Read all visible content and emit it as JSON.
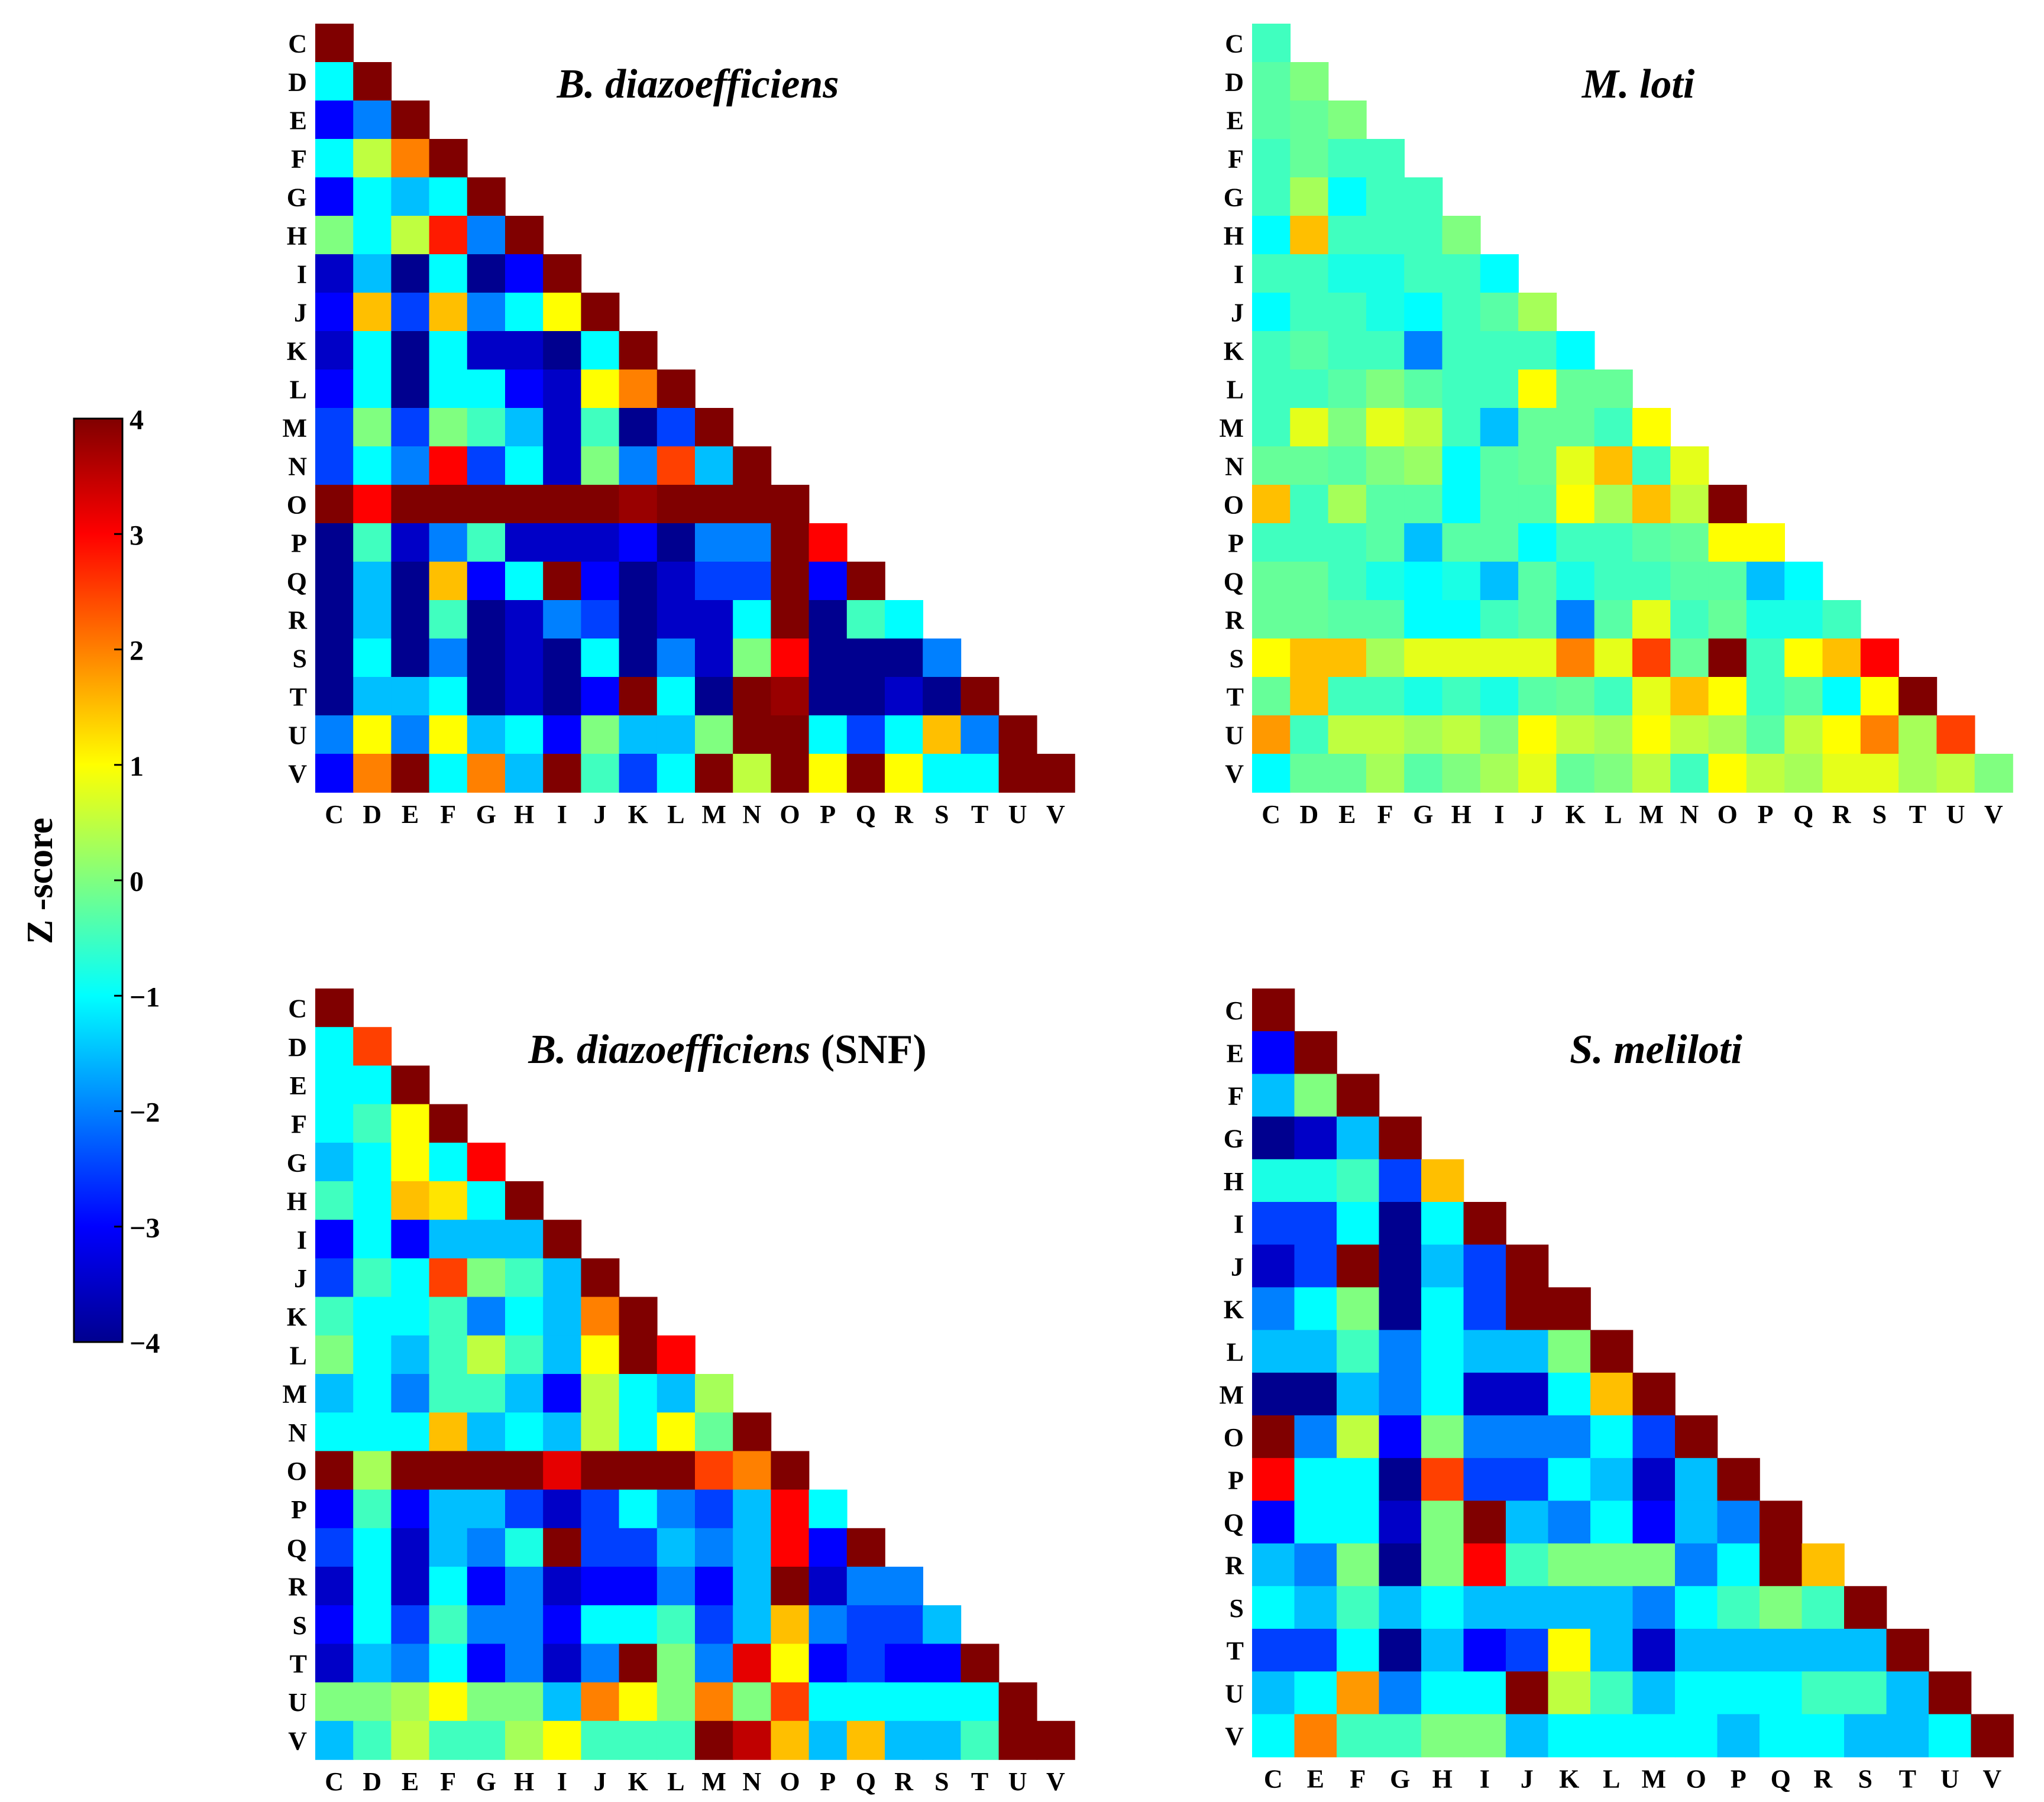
{
  "colorbar": {
    "label": "Z -score",
    "ticks": [
      "4",
      "3",
      "2",
      "1",
      "0",
      "−1",
      "−2",
      "−3",
      "−4"
    ],
    "min": -4,
    "max": 4,
    "colormap": "jet"
  },
  "chart_data": [
    {
      "type": "heatmap",
      "title": "B. diazoefficiens",
      "title_suffix": "",
      "labels": [
        "C",
        "D",
        "E",
        "F",
        "G",
        "H",
        "I",
        "J",
        "K",
        "L",
        "M",
        "N",
        "O",
        "P",
        "Q",
        "R",
        "S",
        "T",
        "U",
        "V"
      ],
      "matrix": [
        [
          4.0
        ],
        [
          -1.0,
          4.0
        ],
        [
          -3.0,
          -2.0,
          4.0
        ],
        [
          -1.0,
          0.5,
          2.0,
          4.0
        ],
        [
          -3.0,
          -1.0,
          -1.5,
          -1.0,
          4.0
        ],
        [
          0.0,
          -1.0,
          0.5,
          2.8,
          -2.0,
          4.0
        ],
        [
          -3.5,
          -1.5,
          -4.0,
          -1.0,
          -4.0,
          -3.0,
          4.0
        ],
        [
          -3.0,
          1.5,
          -2.5,
          1.5,
          -2.0,
          -1.0,
          1.0,
          4.0
        ],
        [
          -3.5,
          -1.0,
          -4.0,
          -1.0,
          -3.5,
          -3.5,
          -4.0,
          -1.0,
          4.0
        ],
        [
          -3.0,
          -1.0,
          -4.0,
          -1.0,
          -1.0,
          -3.0,
          -3.5,
          1.0,
          2.0,
          4.0
        ],
        [
          -2.5,
          0.0,
          -2.5,
          0.0,
          -0.5,
          -1.5,
          -3.5,
          -0.5,
          -4.0,
          -2.5,
          4.0
        ],
        [
          -2.5,
          -1.0,
          -2.0,
          3.0,
          -2.5,
          -1.0,
          -3.5,
          0.0,
          -2.0,
          2.5,
          -1.5,
          4.0
        ],
        [
          4.0,
          3.0,
          4.0,
          4.0,
          4.0,
          4.0,
          4.0,
          4.0,
          3.8,
          4.0,
          4.0,
          4.0,
          4.0
        ],
        [
          -4.0,
          -0.5,
          -3.5,
          -2.0,
          -0.5,
          -3.5,
          -3.5,
          -3.5,
          -3.0,
          -4.0,
          -2.0,
          -2.0,
          4.0,
          3.0
        ],
        [
          -4.0,
          -1.5,
          -4.0,
          1.5,
          -3.0,
          -1.0,
          4.0,
          -3.0,
          -4.0,
          -3.5,
          -2.5,
          -2.5,
          4.0,
          -3.0,
          4.0
        ],
        [
          -4.0,
          -1.5,
          -4.0,
          -0.5,
          -4.0,
          -3.5,
          -2.0,
          -2.5,
          -4.0,
          -3.5,
          -3.5,
          -1.0,
          4.0,
          -4.0,
          -0.5,
          -1.0
        ],
        [
          -4.0,
          -1.0,
          -4.0,
          -2.0,
          -4.0,
          -3.5,
          -4.0,
          -1.0,
          -4.0,
          -2.0,
          -3.5,
          0.0,
          3.0,
          -4.0,
          -4.0,
          -4.0,
          -2.0
        ],
        [
          -4.0,
          -1.5,
          -1.5,
          -1.0,
          -4.0,
          -3.5,
          -4.0,
          -3.0,
          4.0,
          -1.0,
          -4.0,
          4.0,
          3.8,
          -4.0,
          -4.0,
          -3.5,
          -4.0,
          4.0
        ],
        [
          -2.0,
          1.0,
          -2.0,
          1.0,
          -1.5,
          -1.0,
          -3.0,
          0.0,
          -1.5,
          -1.5,
          0.0,
          4.0,
          4.0,
          -1.0,
          -2.5,
          -1.0,
          1.5,
          -2.0,
          4.0
        ],
        [
          -3.0,
          2.0,
          4.0,
          -1.0,
          2.0,
          -1.5,
          4.0,
          -0.5,
          -2.5,
          -1.0,
          4.0,
          0.5,
          4.0,
          1.0,
          4.0,
          1.0,
          -1.0,
          -1.0,
          4.0,
          4.0
        ]
      ]
    },
    {
      "type": "heatmap",
      "title": "M. loti",
      "title_suffix": "",
      "labels": [
        "C",
        "D",
        "E",
        "F",
        "G",
        "H",
        "I",
        "J",
        "K",
        "L",
        "M",
        "N",
        "O",
        "P",
        "Q",
        "R",
        "S",
        "T",
        "U",
        "V"
      ],
      "matrix": [
        [
          -0.5
        ],
        [
          -0.3,
          0.0
        ],
        [
          -0.3,
          -0.2,
          0.0
        ],
        [
          -0.5,
          -0.2,
          -0.5,
          -0.5
        ],
        [
          -0.5,
          0.3,
          -1.0,
          -0.5,
          -0.5
        ],
        [
          -1.0,
          1.5,
          -0.5,
          -0.5,
          -0.5,
          0.0
        ],
        [
          -0.5,
          -0.5,
          -0.8,
          -0.8,
          -0.5,
          -0.5,
          -1.0
        ],
        [
          -1.0,
          -0.5,
          -0.5,
          -0.8,
          -1.0,
          -0.5,
          -0.3,
          0.3
        ],
        [
          -0.5,
          -0.3,
          -0.5,
          -0.5,
          -2.0,
          -0.5,
          -0.5,
          -0.5,
          -1.0
        ],
        [
          -0.5,
          -0.5,
          -0.3,
          0.0,
          -0.3,
          -0.5,
          -0.5,
          1.0,
          -0.2,
          -0.2
        ],
        [
          -0.5,
          0.8,
          0.0,
          0.8,
          0.5,
          -0.5,
          -1.5,
          -0.2,
          -0.2,
          -0.5,
          1.0
        ],
        [
          -0.2,
          -0.2,
          -0.3,
          0.0,
          0.2,
          -1.0,
          -0.3,
          -0.2,
          0.8,
          1.5,
          -0.5,
          0.8
        ],
        [
          1.5,
          -0.5,
          0.3,
          -0.3,
          -0.3,
          -1.0,
          -0.3,
          -0.3,
          1.0,
          0.3,
          1.5,
          0.5,
          4.0
        ],
        [
          -0.5,
          -0.5,
          -0.5,
          -0.3,
          -1.5,
          -0.3,
          -0.3,
          -1.0,
          -0.5,
          -0.5,
          -0.3,
          -0.2,
          1.0,
          1.0
        ],
        [
          -0.2,
          -0.2,
          -0.5,
          -0.8,
          -1.0,
          -0.8,
          -1.5,
          -0.3,
          -0.8,
          -0.5,
          -0.5,
          -0.3,
          -0.3,
          -1.5,
          -1.0
        ],
        [
          -0.2,
          -0.2,
          -0.3,
          -0.3,
          -1.0,
          -1.0,
          -0.5,
          -0.3,
          -2.0,
          -0.3,
          0.8,
          -0.5,
          -0.2,
          -0.8,
          -0.8,
          -0.5
        ],
        [
          1.0,
          1.5,
          1.5,
          0.3,
          0.8,
          0.8,
          0.8,
          0.8,
          2.0,
          0.8,
          2.5,
          -0.2,
          4.0,
          -0.5,
          1.0,
          1.5,
          3.0
        ],
        [
          -0.2,
          1.5,
          -0.5,
          -0.5,
          -0.8,
          -0.5,
          -0.8,
          -0.3,
          -0.2,
          -0.5,
          0.8,
          1.5,
          1.0,
          -0.5,
          -0.3,
          -1.0,
          1.0,
          4.0
        ],
        [
          1.8,
          -0.5,
          0.5,
          0.5,
          0.3,
          0.5,
          0.0,
          1.0,
          0.5,
          0.3,
          1.0,
          0.5,
          0.3,
          -0.3,
          0.5,
          1.0,
          2.0,
          0.3,
          2.5
        ],
        [
          -1.0,
          -0.2,
          -0.2,
          0.3,
          -0.3,
          0.0,
          0.3,
          0.8,
          -0.2,
          0.0,
          0.5,
          -0.5,
          1.0,
          0.5,
          0.3,
          0.8,
          0.8,
          0.3,
          0.5,
          0.0
        ]
      ]
    },
    {
      "type": "heatmap",
      "title": "B. diazoefficiens",
      "title_suffix": " (SNF)",
      "labels": [
        "C",
        "D",
        "E",
        "F",
        "G",
        "H",
        "I",
        "J",
        "K",
        "L",
        "M",
        "N",
        "O",
        "P",
        "Q",
        "R",
        "S",
        "T",
        "U",
        "V"
      ],
      "matrix": [
        [
          4.0
        ],
        [
          -1.0,
          2.5
        ],
        [
          -1.0,
          -1.0,
          4.0
        ],
        [
          -1.0,
          -0.5,
          1.0,
          4.0
        ],
        [
          -1.5,
          -1.0,
          1.0,
          -1.0,
          3.0
        ],
        [
          -0.5,
          -1.0,
          1.5,
          1.2,
          -1.0,
          4.0
        ],
        [
          -3.0,
          -1.0,
          -3.0,
          -1.5,
          -1.5,
          -1.5,
          4.0
        ],
        [
          -2.5,
          -0.5,
          -1.0,
          2.5,
          0.0,
          -0.5,
          -1.5,
          4.0
        ],
        [
          -0.5,
          -1.0,
          -1.0,
          -0.5,
          -2.0,
          -1.0,
          -1.5,
          2.0,
          4.0
        ],
        [
          0.0,
          -1.0,
          -1.5,
          -0.5,
          0.5,
          -0.5,
          -1.5,
          1.0,
          4.0,
          3.0
        ],
        [
          -1.5,
          -1.0,
          -2.0,
          -0.5,
          -0.5,
          -1.5,
          -3.0,
          0.5,
          -1.0,
          -1.5,
          0.3
        ],
        [
          -1.0,
          -1.0,
          -1.0,
          1.5,
          -1.5,
          -1.0,
          -1.5,
          0.5,
          -1.0,
          1.0,
          -0.2,
          4.0
        ],
        [
          4.0,
          0.3,
          4.0,
          4.0,
          4.0,
          4.0,
          3.2,
          4.0,
          4.0,
          4.0,
          2.5,
          2.0,
          4.0
        ],
        [
          -3.0,
          -0.5,
          -3.0,
          -1.5,
          -1.5,
          -2.5,
          -3.5,
          -2.5,
          -1.0,
          -2.0,
          -2.5,
          -1.5,
          3.0,
          -1.0
        ],
        [
          -2.5,
          -1.0,
          -3.5,
          -1.5,
          -2.0,
          -0.8,
          4.0,
          -2.5,
          -2.5,
          -1.5,
          -2.0,
          -1.5,
          3.0,
          -3.0,
          4.0
        ],
        [
          -3.5,
          -1.0,
          -3.5,
          -1.0,
          -3.0,
          -2.0,
          -3.5,
          -3.0,
          -3.0,
          -2.0,
          -3.0,
          -1.5,
          4.0,
          -3.5,
          -2.0,
          -2.0
        ],
        [
          -3.0,
          -1.0,
          -2.5,
          -0.5,
          -2.0,
          -2.0,
          -3.0,
          -1.0,
          -1.0,
          -0.5,
          -2.5,
          -1.5,
          1.5,
          -2.0,
          -2.5,
          -2.5,
          -1.5
        ],
        [
          -3.5,
          -1.5,
          -2.0,
          -1.0,
          -3.0,
          -2.0,
          -3.5,
          -2.0,
          4.0,
          0.0,
          -2.0,
          3.2,
          1.0,
          -3.0,
          -2.5,
          -3.0,
          -3.0,
          4.0
        ],
        [
          0.0,
          0.0,
          0.3,
          1.0,
          0.0,
          0.0,
          -1.5,
          2.0,
          1.0,
          0.0,
          2.0,
          0.0,
          2.5,
          -1.0,
          -1.0,
          -1.0,
          -1.0,
          -1.0,
          4.0
        ],
        [
          -1.5,
          -0.5,
          0.5,
          -0.5,
          -0.5,
          0.3,
          1.0,
          -0.5,
          -0.5,
          -0.5,
          4.0,
          3.5,
          1.5,
          -1.5,
          1.5,
          -1.5,
          -1.5,
          -0.5,
          4.0,
          4.0
        ]
      ]
    },
    {
      "type": "heatmap",
      "title": "S. meliloti",
      "title_suffix": "",
      "labels": [
        "C",
        "E",
        "F",
        "G",
        "H",
        "I",
        "J",
        "K",
        "L",
        "M",
        "O",
        "P",
        "Q",
        "R",
        "S",
        "T",
        "U",
        "V"
      ],
      "matrix": [
        [
          4.0
        ],
        [
          -3.0,
          4.0
        ],
        [
          -1.5,
          0.0,
          4.0
        ],
        [
          -4.0,
          -3.5,
          -1.5,
          4.0
        ],
        [
          -0.8,
          -0.8,
          -0.5,
          -2.5,
          1.5
        ],
        [
          -2.5,
          -2.5,
          -1.0,
          -4.0,
          -1.0,
          4.0
        ],
        [
          -3.5,
          -2.5,
          4.0,
          -4.0,
          -1.5,
          -2.5,
          4.0
        ],
        [
          -2.0,
          -1.0,
          0.0,
          -4.0,
          -1.0,
          -2.5,
          4.0,
          4.0
        ],
        [
          -1.5,
          -1.5,
          -0.5,
          -2.0,
          -1.0,
          -1.5,
          -1.5,
          0.0,
          4.0
        ],
        [
          -4.0,
          -4.0,
          -1.5,
          -2.0,
          -1.0,
          -3.5,
          -3.5,
          -1.0,
          1.5,
          4.0
        ],
        [
          4.0,
          -2.0,
          0.5,
          -3.0,
          0.0,
          -2.0,
          -2.0,
          -2.0,
          -1.0,
          -2.5,
          4.0
        ],
        [
          3.0,
          -1.0,
          -1.0,
          -4.0,
          2.5,
          -2.5,
          -2.5,
          -1.0,
          -1.5,
          -3.5,
          -1.5,
          4.0
        ],
        [
          -3.0,
          -1.0,
          -1.0,
          -3.5,
          0.0,
          4.0,
          -1.5,
          -2.0,
          -1.0,
          -3.0,
          -1.5,
          -2.0,
          4.0
        ],
        [
          -1.5,
          -2.0,
          0.0,
          -4.0,
          0.0,
          3.0,
          -0.5,
          0.0,
          0.0,
          0.0,
          -2.0,
          -1.0,
          4.0,
          1.5
        ],
        [
          -1.0,
          -1.5,
          -0.5,
          -1.5,
          -1.0,
          -1.5,
          -1.5,
          -1.5,
          -1.5,
          -2.0,
          -1.0,
          -0.5,
          0.0,
          -0.5,
          4.0
        ],
        [
          -2.5,
          -2.5,
          -1.0,
          -4.0,
          -1.5,
          -3.0,
          -2.5,
          1.0,
          -1.5,
          -3.5,
          -1.5,
          -1.5,
          -1.5,
          -1.5,
          -1.5,
          4.0
        ],
        [
          -1.5,
          -1.0,
          1.8,
          -2.0,
          -1.0,
          -1.0,
          4.0,
          0.5,
          -0.5,
          -1.5,
          -1.0,
          -1.0,
          -1.0,
          -0.5,
          -0.5,
          -1.5,
          4.0
        ],
        [
          -1.0,
          2.0,
          -0.5,
          -0.5,
          0.0,
          0.0,
          -1.5,
          -1.0,
          -1.0,
          -1.0,
          -1.0,
          -1.5,
          -1.0,
          -1.0,
          -1.5,
          -1.5,
          -1.0,
          4.0
        ]
      ]
    }
  ]
}
